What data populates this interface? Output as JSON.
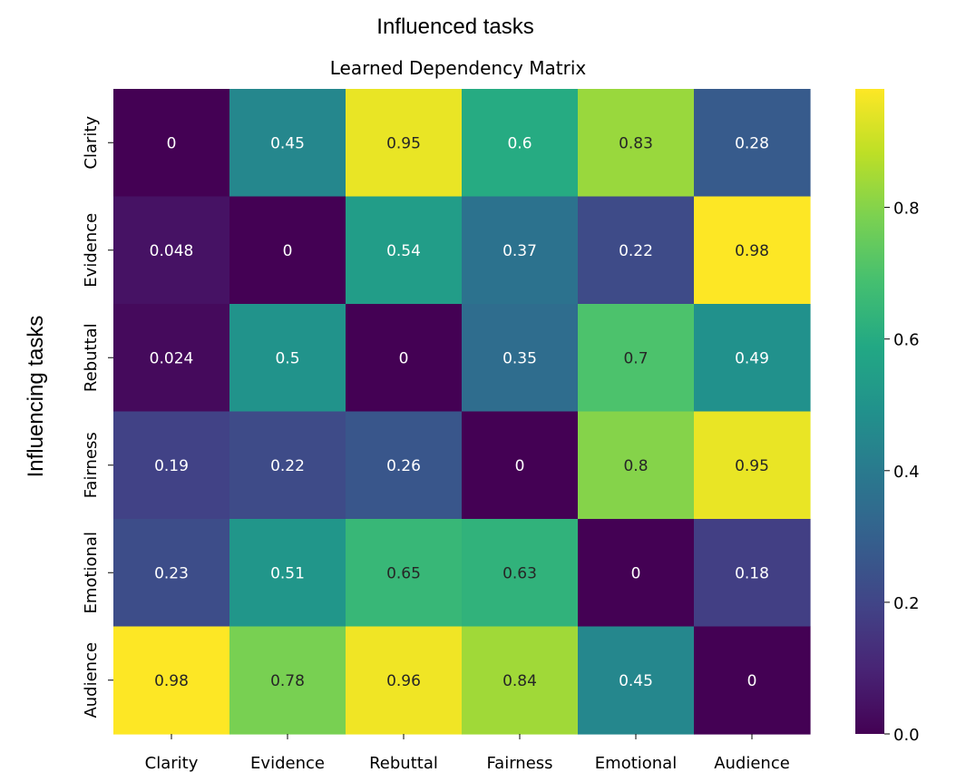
{
  "outer": {
    "top_label": "Influenced tasks",
    "left_label": "Influencing tasks"
  },
  "chart_data": {
    "type": "heatmap",
    "title": "Learned Dependency Matrix",
    "colormap": "viridis",
    "rows": [
      "Clarity",
      "Evidence",
      "Rebuttal",
      "Fairness",
      "Emotional",
      "Audience"
    ],
    "columns": [
      "Clarity",
      "Evidence",
      "Rebuttal",
      "Fairness",
      "Emotional",
      "Audience"
    ],
    "values": [
      [
        0,
        0.45,
        0.95,
        0.6,
        0.83,
        0.28
      ],
      [
        0.048,
        0,
        0.54,
        0.37,
        0.22,
        0.98
      ],
      [
        0.024,
        0.5,
        0,
        0.35,
        0.7,
        0.49
      ],
      [
        0.19,
        0.22,
        0.26,
        0,
        0.8,
        0.95
      ],
      [
        0.23,
        0.51,
        0.65,
        0.63,
        0,
        0.18
      ],
      [
        0.98,
        0.78,
        0.96,
        0.84,
        0.45,
        0
      ]
    ],
    "value_labels": [
      [
        "0",
        "0.45",
        "0.95",
        "0.6",
        "0.83",
        "0.28"
      ],
      [
        "0.048",
        "0",
        "0.54",
        "0.37",
        "0.22",
        "0.98"
      ],
      [
        "0.024",
        "0.5",
        "0",
        "0.35",
        "0.7",
        "0.49"
      ],
      [
        "0.19",
        "0.22",
        "0.26",
        "0",
        "0.8",
        "0.95"
      ],
      [
        "0.23",
        "0.51",
        "0.65",
        "0.63",
        "0",
        "0.18"
      ],
      [
        "0.98",
        "0.78",
        "0.96",
        "0.84",
        "0.45",
        "0"
      ]
    ],
    "colorbar": {
      "vmin": 0,
      "vmax": 0.98,
      "ticks": [
        0.0,
        0.2,
        0.4,
        0.6,
        0.8
      ],
      "tick_labels": [
        "0.0",
        "0.2",
        "0.4",
        "0.6",
        "0.8"
      ]
    },
    "grid": false
  }
}
